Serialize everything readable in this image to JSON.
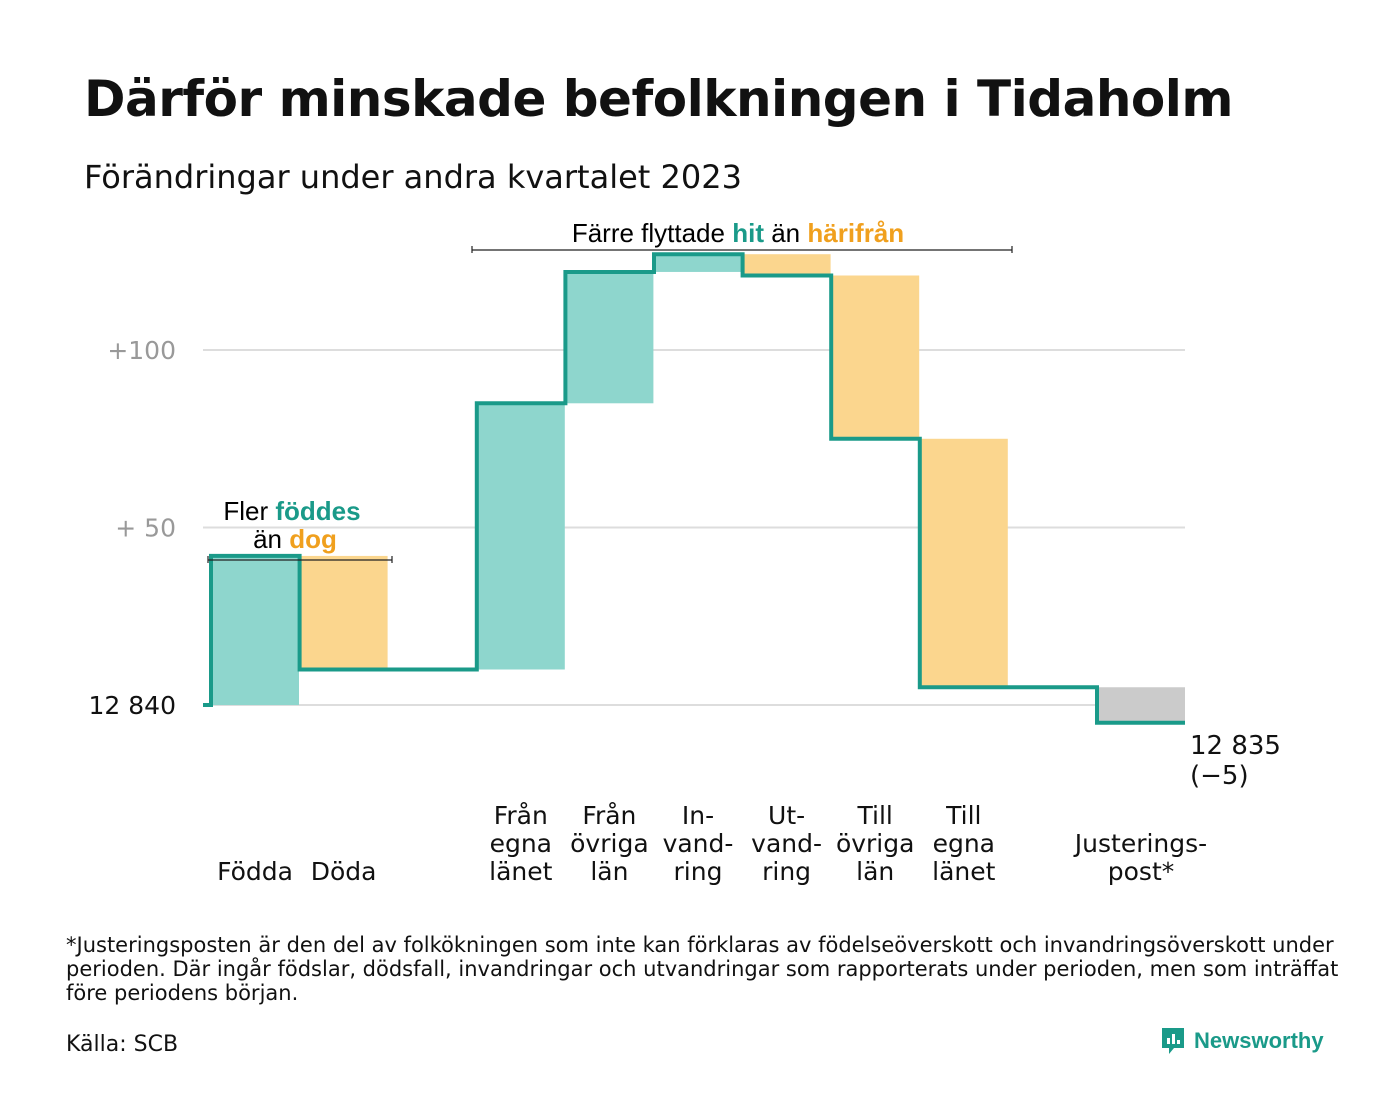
{
  "title": "Därför minskade befolkningen i Tidaholm",
  "subtitle": "Förändringar under andra kvartalet 2023",
  "footnote": "*Justeringsposten är den del av folkökningen som inte kan förklaras av födelseöverskott och invandringsöverskott under perioden. Där ingår födslar, dödsfall, invandringar och utvandringar som rapporterats under perioden, men som inträffat före periodens början.",
  "source": "Källa: SCB",
  "brand": "Newsworthy",
  "colors": {
    "increase": "#8ed6cd",
    "decrease": "#fbd68e",
    "adjustment": "#cbcbcb",
    "line": "#1a9a89",
    "accent_orange": "#f0a01e",
    "grid": "#dddddd"
  },
  "annotations": {
    "births_deaths": {
      "pre1": "Fler ",
      "hl1": "föddes",
      "pre2": "än ",
      "hl2": "dog"
    },
    "migration": {
      "pre": "Färre flyttade ",
      "hl1": "hit",
      "mid": " än ",
      "hl2": "härifrån"
    }
  },
  "chart_data": {
    "type": "waterfall",
    "baseline": 12840,
    "baseline_label": "12  840",
    "end_value": 12835,
    "end_label": "12 835",
    "end_change_label": "(−5)",
    "y_ticks": [
      {
        "value": 12940,
        "label": "+100"
      },
      {
        "value": 12890,
        "label": "+  50"
      }
    ],
    "ylim": [
      12820,
      12971
    ],
    "steps": [
      {
        "lines": [
          "Födda"
        ],
        "change": 42,
        "kind": "increase"
      },
      {
        "lines": [
          "Döda"
        ],
        "change": -32,
        "kind": "decrease"
      },
      {
        "lines": [
          ""
        ],
        "change": 0,
        "kind": "gap"
      },
      {
        "lines": [
          "Från",
          "egna",
          "länet"
        ],
        "change": 75,
        "kind": "increase"
      },
      {
        "lines": [
          "Från",
          "övriga",
          "län"
        ],
        "change": 37,
        "kind": "increase"
      },
      {
        "lines": [
          "In-",
          "vand-",
          "ring"
        ],
        "change": 5,
        "kind": "increase"
      },
      {
        "lines": [
          "Ut-",
          "vand-",
          "ring"
        ],
        "change": -6,
        "kind": "decrease"
      },
      {
        "lines": [
          "Till",
          "övriga",
          "län"
        ],
        "change": -46,
        "kind": "decrease"
      },
      {
        "lines": [
          "Till",
          "egna",
          "länet"
        ],
        "change": -70,
        "kind": "decrease"
      },
      {
        "lines": [
          ""
        ],
        "change": 0,
        "kind": "gap"
      },
      {
        "lines": [
          "Justerings-",
          "post*"
        ],
        "change": -10,
        "kind": "adjustment"
      }
    ]
  }
}
